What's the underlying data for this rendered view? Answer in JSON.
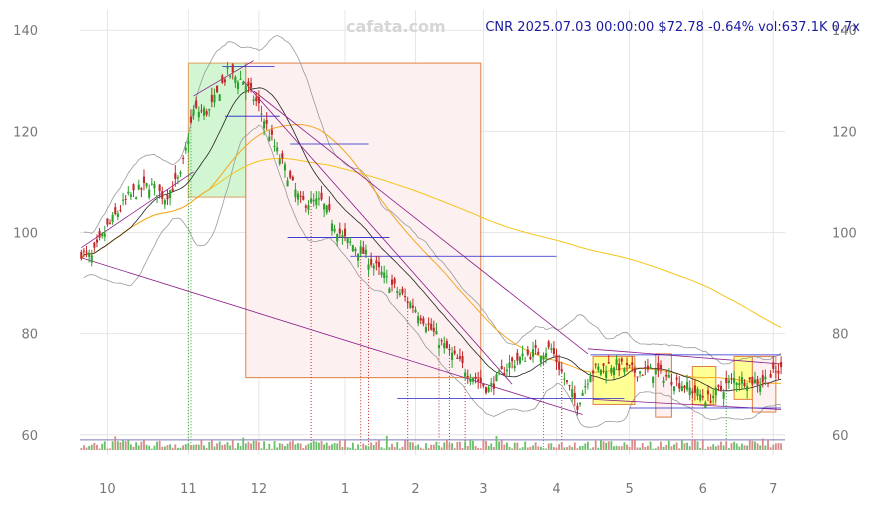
{
  "watermark": "cafata.com",
  "header_text": "CNR 2025.07.03 00:00:00 $72.78 -0.64% vol:637.1K 0.7x",
  "colors": {
    "up": "#2ca02c",
    "down": "#c0282a",
    "grid": "#e6e6e6",
    "green_zone": "#ccf5cc",
    "red_zone": "#fdeeee",
    "yellow_zone": "#ffff88",
    "ma_long": "#f5c518",
    "ma_mid": "#f5a623",
    "ma_short": "#222222",
    "band": "#999999",
    "trend": "#8b1a8b",
    "level": "#2222cc"
  },
  "chart_data": {
    "type": "candlestick",
    "title": "",
    "xlabel": "",
    "ylabel": "",
    "x_ticks": [
      "10",
      "11",
      "12",
      "1",
      "2",
      "3",
      "4",
      "5",
      "6",
      "7"
    ],
    "x_tick_index": [
      10,
      41,
      68,
      101,
      128,
      154,
      182,
      210,
      238,
      265
    ],
    "y_ticks": [
      60,
      80,
      100,
      120,
      140
    ],
    "ylim": [
      56,
      144
    ],
    "grid": true,
    "anchors": [
      [
        0,
        96
      ],
      [
        4,
        95
      ],
      [
        10,
        101
      ],
      [
        18,
        107
      ],
      [
        26,
        109.5
      ],
      [
        32,
        107
      ],
      [
        38,
        111
      ],
      [
        43,
        124
      ],
      [
        49,
        124
      ],
      [
        56,
        131.5
      ],
      [
        62,
        130
      ],
      [
        68,
        125
      ],
      [
        74,
        117
      ],
      [
        84,
        106
      ],
      [
        92,
        106
      ],
      [
        100,
        99
      ],
      [
        108,
        96
      ],
      [
        118,
        90
      ],
      [
        128,
        85
      ],
      [
        138,
        78
      ],
      [
        148,
        72.5
      ],
      [
        156,
        69
      ],
      [
        164,
        74
      ],
      [
        172,
        76
      ],
      [
        180,
        77
      ],
      [
        186,
        70
      ],
      [
        190,
        66
      ],
      [
        195,
        72.5
      ],
      [
        204,
        74
      ],
      [
        212,
        72.5
      ],
      [
        220,
        72.5
      ],
      [
        230,
        70
      ],
      [
        240,
        67
      ],
      [
        250,
        71
      ],
      [
        260,
        70.5
      ],
      [
        268,
        72.8
      ]
    ],
    "zones": [
      {
        "type": "green",
        "i0": 41,
        "i1": 63,
        "lo": 107,
        "hi": 133.5
      },
      {
        "type": "red",
        "i0": 63,
        "i1": 153,
        "lo": 71.3,
        "hi": 133.5
      },
      {
        "type": "yellow",
        "i0": 196,
        "i1": 212,
        "lo": 66,
        "hi": 75.5
      },
      {
        "type": "red",
        "i0": 220,
        "i1": 226,
        "lo": 63.5,
        "hi": 76
      },
      {
        "type": "yellow",
        "i0": 234,
        "i1": 243,
        "lo": 66,
        "hi": 73.5
      },
      {
        "type": "yellow",
        "i0": 250,
        "i1": 257,
        "lo": 67,
        "hi": 75.5
      },
      {
        "type": "red",
        "i0": 257,
        "i1": 266,
        "lo": 64.5,
        "hi": 75.5
      }
    ],
    "levels": [
      {
        "i0": 54,
        "i1": 74,
        "y": 132.8
      },
      {
        "i0": 55,
        "i1": 76,
        "y": 123
      },
      {
        "i0": 80,
        "i1": 110,
        "y": 117.5
      },
      {
        "i0": 79,
        "i1": 118,
        "y": 99
      },
      {
        "i0": 103,
        "i1": 182,
        "y": 95.3
      },
      {
        "i0": 121,
        "i1": 208,
        "y": 67.2
      },
      {
        "i0": 195,
        "i1": 268,
        "y": 75.8
      },
      {
        "i0": 210,
        "i1": 268,
        "y": 65.3
      }
    ],
    "trendlines": [
      {
        "i0": 0,
        "y0": 95,
        "i1": 192,
        "y1": 64
      },
      {
        "i0": 0,
        "y0": 97,
        "i1": 43,
        "y1": 112
      },
      {
        "i0": 43,
        "y0": 127,
        "i1": 66,
        "y1": 134
      },
      {
        "i0": 62,
        "y0": 130,
        "i1": 165,
        "y1": 70
      },
      {
        "i0": 66,
        "y0": 128,
        "i1": 194,
        "y1": 76
      },
      {
        "i0": 194,
        "y0": 77,
        "i1": 268,
        "y1": 74
      },
      {
        "i0": 196,
        "y0": 67,
        "i1": 268,
        "y1": 65
      }
    ],
    "vlines": [
      {
        "i": 41,
        "color": "#2ca02c"
      },
      {
        "i": 42,
        "color": "#2ca02c"
      },
      {
        "i": 88,
        "color": "#c0282a"
      },
      {
        "i": 107,
        "color": "#c0282a"
      },
      {
        "i": 110,
        "color": "#c0282a"
      },
      {
        "i": 125,
        "color": "#c0282a"
      },
      {
        "i": 137,
        "color": "#c0282a"
      },
      {
        "i": 141,
        "color": "#c0282a"
      },
      {
        "i": 147,
        "color": "#c0282a"
      },
      {
        "i": 177,
        "color": "#2ca02c"
      },
      {
        "i": 184,
        "color": "#c0282a"
      },
      {
        "i": 234,
        "color": "#c0282a"
      },
      {
        "i": 247,
        "color": "#2ca02c"
      }
    ]
  }
}
